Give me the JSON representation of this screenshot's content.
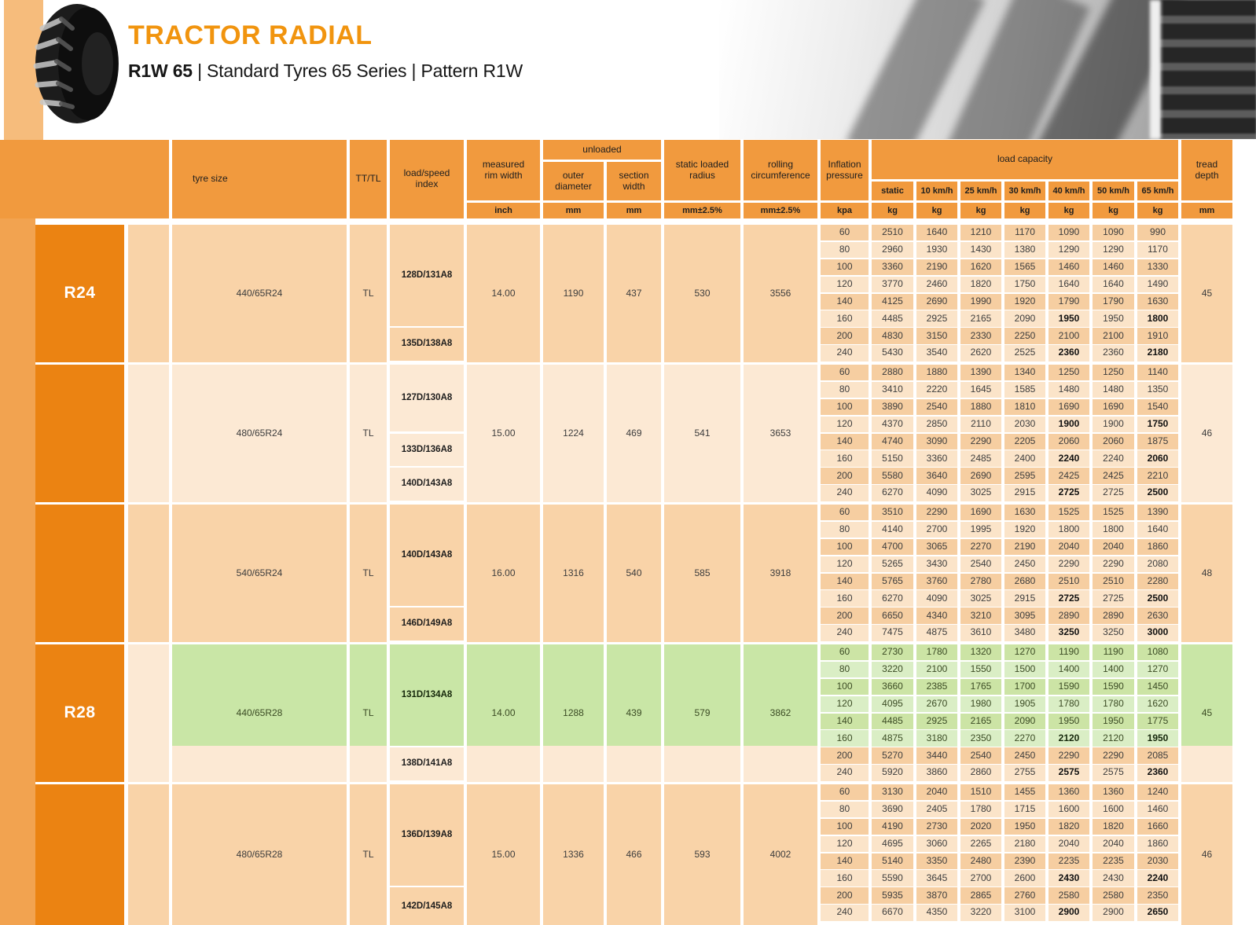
{
  "header": {
    "title": "TRACTOR RADIAL",
    "subtitle_bold": "R1W 65",
    "subtitle_rest": " | Standard Tyres 65 Series | Pattern R1W"
  },
  "colors": {
    "title_orange": "#F1940E",
    "header_orange": "#F19A3E",
    "bar_orange": "#F2A350",
    "bar_light": "#F6BC7C",
    "section_orange": "#EB8312",
    "group_dark": "#F9D3A8",
    "group_light": "#FCE9D4",
    "row_dark": "#F6CEA1",
    "row_light": "#FBE4C9",
    "green_cell": "#C9E6A6",
    "green_row_dark": "#CCE4A5",
    "green_row_light": "#DAEEC5",
    "text": "#3D3D3D",
    "text_bold": "#101010",
    "text_green": "#3B4B24",
    "text_green_bold": "#16280B",
    "header_text": "#1E1E1E"
  },
  "table": {
    "headers": {
      "tyre_size": "tyre size",
      "tt_tl": "TT/TL",
      "load_speed_index": "load/speed index",
      "measured_rim_width": "measured rim width",
      "unloaded": "unloaded",
      "outer_diameter": "outer diameter",
      "section_width": "section width",
      "static_loaded_radius": "static loaded radius",
      "rolling_circumference": "rolling circumference",
      "inflation_pressure": "Inflation pressure",
      "load_capacity": "load capacity",
      "tread_depth": "tread depth"
    },
    "speed_headers": [
      "static",
      "10 km/h",
      "25 km/h",
      "30 km/h",
      "40 km/h",
      "50 km/h",
      "65 km/h"
    ],
    "units": {
      "rim": "inch",
      "outer_diameter": "mm",
      "section_width": "mm",
      "static_loaded_radius": "mm±2.5%",
      "rolling_circumference": "mm±2.5%",
      "pressure": "kpa",
      "load": "kg",
      "tread": "mm"
    }
  },
  "groups": [
    {
      "section_label": "R24",
      "tyre_size": "440/65R24",
      "tt_tl": "TL",
      "indexes": [
        {
          "label": "128D/131A8",
          "from": 0,
          "to": 5
        },
        {
          "label": "135D/138A8",
          "from": 6,
          "to": 7
        }
      ],
      "rim": "14.00",
      "outer_diameter": "1190",
      "section_width": "437",
      "static_loaded_radius": "530",
      "rolling_circumference": "3556",
      "tread_depth": "45",
      "green_rows": 0,
      "rows": [
        {
          "pressure": "60",
          "values": [
            "2510",
            "1640",
            "1210",
            "1170",
            "1090",
            "1090",
            "990"
          ],
          "bold": []
        },
        {
          "pressure": "80",
          "values": [
            "2960",
            "1930",
            "1430",
            "1380",
            "1290",
            "1290",
            "1170"
          ],
          "bold": []
        },
        {
          "pressure": "100",
          "values": [
            "3360",
            "2190",
            "1620",
            "1565",
            "1460",
            "1460",
            "1330"
          ],
          "bold": []
        },
        {
          "pressure": "120",
          "values": [
            "3770",
            "2460",
            "1820",
            "1750",
            "1640",
            "1640",
            "1490"
          ],
          "bold": []
        },
        {
          "pressure": "140",
          "values": [
            "4125",
            "2690",
            "1990",
            "1920",
            "1790",
            "1790",
            "1630"
          ],
          "bold": []
        },
        {
          "pressure": "160",
          "values": [
            "4485",
            "2925",
            "2165",
            "2090",
            "1950",
            "1950",
            "1800"
          ],
          "bold": [
            4,
            6
          ]
        },
        {
          "pressure": "200",
          "values": [
            "4830",
            "3150",
            "2330",
            "2250",
            "2100",
            "2100",
            "1910"
          ],
          "bold": []
        },
        {
          "pressure": "240",
          "values": [
            "5430",
            "3540",
            "2620",
            "2525",
            "2360",
            "2360",
            "2180"
          ],
          "bold": [
            4,
            6
          ]
        }
      ]
    },
    {
      "section_label": "",
      "tyre_size": "480/65R24",
      "tt_tl": "TL",
      "indexes": [
        {
          "label": "127D/130A8",
          "from": 0,
          "to": 3
        },
        {
          "label": "133D/136A8",
          "from": 4,
          "to": 5
        },
        {
          "label": "140D/143A8",
          "from": 6,
          "to": 7
        }
      ],
      "rim": "15.00",
      "outer_diameter": "1224",
      "section_width": "469",
      "static_loaded_radius": "541",
      "rolling_circumference": "3653",
      "tread_depth": "46",
      "green_rows": 0,
      "rows": [
        {
          "pressure": "60",
          "values": [
            "2880",
            "1880",
            "1390",
            "1340",
            "1250",
            "1250",
            "1140"
          ],
          "bold": []
        },
        {
          "pressure": "80",
          "values": [
            "3410",
            "2220",
            "1645",
            "1585",
            "1480",
            "1480",
            "1350"
          ],
          "bold": []
        },
        {
          "pressure": "100",
          "values": [
            "3890",
            "2540",
            "1880",
            "1810",
            "1690",
            "1690",
            "1540"
          ],
          "bold": []
        },
        {
          "pressure": "120",
          "values": [
            "4370",
            "2850",
            "2110",
            "2030",
            "1900",
            "1900",
            "1750"
          ],
          "bold": [
            4,
            6
          ]
        },
        {
          "pressure": "140",
          "values": [
            "4740",
            "3090",
            "2290",
            "2205",
            "2060",
            "2060",
            "1875"
          ],
          "bold": []
        },
        {
          "pressure": "160",
          "values": [
            "5150",
            "3360",
            "2485",
            "2400",
            "2240",
            "2240",
            "2060"
          ],
          "bold": [
            4,
            6
          ]
        },
        {
          "pressure": "200",
          "values": [
            "5580",
            "3640",
            "2690",
            "2595",
            "2425",
            "2425",
            "2210"
          ],
          "bold": []
        },
        {
          "pressure": "240",
          "values": [
            "6270",
            "4090",
            "3025",
            "2915",
            "2725",
            "2725",
            "2500"
          ],
          "bold": [
            4,
            6
          ]
        }
      ]
    },
    {
      "section_label": "",
      "tyre_size": "540/65R24",
      "tt_tl": "TL",
      "indexes": [
        {
          "label": "140D/143A8",
          "from": 0,
          "to": 5
        },
        {
          "label": "146D/149A8",
          "from": 6,
          "to": 7
        }
      ],
      "rim": "16.00",
      "outer_diameter": "1316",
      "section_width": "540",
      "static_loaded_radius": "585",
      "rolling_circumference": "3918",
      "tread_depth": "48",
      "green_rows": 0,
      "rows": [
        {
          "pressure": "60",
          "values": [
            "3510",
            "2290",
            "1690",
            "1630",
            "1525",
            "1525",
            "1390"
          ],
          "bold": []
        },
        {
          "pressure": "80",
          "values": [
            "4140",
            "2700",
            "1995",
            "1920",
            "1800",
            "1800",
            "1640"
          ],
          "bold": []
        },
        {
          "pressure": "100",
          "values": [
            "4700",
            "3065",
            "2270",
            "2190",
            "2040",
            "2040",
            "1860"
          ],
          "bold": []
        },
        {
          "pressure": "120",
          "values": [
            "5265",
            "3430",
            "2540",
            "2450",
            "2290",
            "2290",
            "2080"
          ],
          "bold": []
        },
        {
          "pressure": "140",
          "values": [
            "5765",
            "3760",
            "2780",
            "2680",
            "2510",
            "2510",
            "2280"
          ],
          "bold": []
        },
        {
          "pressure": "160",
          "values": [
            "6270",
            "4090",
            "3025",
            "2915",
            "2725",
            "2725",
            "2500"
          ],
          "bold": [
            4,
            6
          ]
        },
        {
          "pressure": "200",
          "values": [
            "6650",
            "4340",
            "3210",
            "3095",
            "2890",
            "2890",
            "2630"
          ],
          "bold": []
        },
        {
          "pressure": "240",
          "values": [
            "7475",
            "4875",
            "3610",
            "3480",
            "3250",
            "3250",
            "3000"
          ],
          "bold": [
            4,
            6
          ]
        }
      ]
    },
    {
      "section_label": "R28",
      "tyre_size": "440/65R28",
      "tt_tl": "TL",
      "indexes": [
        {
          "label": "131D/134A8",
          "from": 0,
          "to": 5
        },
        {
          "label": "138D/141A8",
          "from": 6,
          "to": 7
        }
      ],
      "rim": "14.00",
      "outer_diameter": "1288",
      "section_width": "439",
      "static_loaded_radius": "579",
      "rolling_circumference": "3862",
      "tread_depth": "45",
      "green_rows": 6,
      "rows": [
        {
          "pressure": "60",
          "values": [
            "2730",
            "1780",
            "1320",
            "1270",
            "1190",
            "1190",
            "1080"
          ],
          "bold": []
        },
        {
          "pressure": "80",
          "values": [
            "3220",
            "2100",
            "1550",
            "1500",
            "1400",
            "1400",
            "1270"
          ],
          "bold": []
        },
        {
          "pressure": "100",
          "values": [
            "3660",
            "2385",
            "1765",
            "1700",
            "1590",
            "1590",
            "1450"
          ],
          "bold": []
        },
        {
          "pressure": "120",
          "values": [
            "4095",
            "2670",
            "1980",
            "1905",
            "1780",
            "1780",
            "1620"
          ],
          "bold": []
        },
        {
          "pressure": "140",
          "values": [
            "4485",
            "2925",
            "2165",
            "2090",
            "1950",
            "1950",
            "1775"
          ],
          "bold": []
        },
        {
          "pressure": "160",
          "values": [
            "4875",
            "3180",
            "2350",
            "2270",
            "2120",
            "2120",
            "1950"
          ],
          "bold": [
            4,
            6
          ]
        },
        {
          "pressure": "200",
          "values": [
            "5270",
            "3440",
            "2540",
            "2450",
            "2290",
            "2290",
            "2085"
          ],
          "bold": []
        },
        {
          "pressure": "240",
          "values": [
            "5920",
            "3860",
            "2860",
            "2755",
            "2575",
            "2575",
            "2360"
          ],
          "bold": [
            4,
            6
          ]
        }
      ]
    },
    {
      "section_label": "",
      "tyre_size": "480/65R28",
      "tt_tl": "TL",
      "indexes": [
        {
          "label": "136D/139A8",
          "from": 0,
          "to": 5
        },
        {
          "label": "142D/145A8",
          "from": 6,
          "to": 7
        }
      ],
      "rim": "15.00",
      "outer_diameter": "1336",
      "section_width": "466",
      "static_loaded_radius": "593",
      "rolling_circumference": "4002",
      "tread_depth": "46",
      "green_rows": 0,
      "rows": [
        {
          "pressure": "60",
          "values": [
            "3130",
            "2040",
            "1510",
            "1455",
            "1360",
            "1360",
            "1240"
          ],
          "bold": []
        },
        {
          "pressure": "80",
          "values": [
            "3690",
            "2405",
            "1780",
            "1715",
            "1600",
            "1600",
            "1460"
          ],
          "bold": []
        },
        {
          "pressure": "100",
          "values": [
            "4190",
            "2730",
            "2020",
            "1950",
            "1820",
            "1820",
            "1660"
          ],
          "bold": []
        },
        {
          "pressure": "120",
          "values": [
            "4695",
            "3060",
            "2265",
            "2180",
            "2040",
            "2040",
            "1860"
          ],
          "bold": []
        },
        {
          "pressure": "140",
          "values": [
            "5140",
            "3350",
            "2480",
            "2390",
            "2235",
            "2235",
            "2030"
          ],
          "bold": []
        },
        {
          "pressure": "160",
          "values": [
            "5590",
            "3645",
            "2700",
            "2600",
            "2430",
            "2430",
            "2240"
          ],
          "bold": [
            4,
            6
          ]
        },
        {
          "pressure": "200",
          "values": [
            "5935",
            "3870",
            "2865",
            "2760",
            "2580",
            "2580",
            "2350"
          ],
          "bold": []
        },
        {
          "pressure": "240",
          "values": [
            "6670",
            "4350",
            "3220",
            "3100",
            "2900",
            "2900",
            "2650"
          ],
          "bold": [
            4,
            6
          ]
        }
      ]
    }
  ]
}
